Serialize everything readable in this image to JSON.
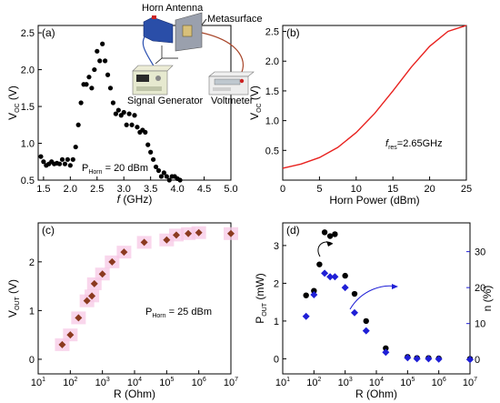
{
  "panel_a": {
    "tag": "(a)",
    "ylabel_main": "V",
    "ylabel_sub": "OC",
    "ylabel_unit": " (V)",
    "xlabel_italic": "f",
    "xlabel_rest": " (GHz)",
    "annotation_main": "P",
    "annotation_sub": "Horn",
    "annotation_rest": " = 20 dBm",
    "inset": {
      "horn_antenna": "Horn Antenna",
      "metasurface": "Metasurface",
      "signal_generator": "Signal Generator",
      "voltmeter": "Voltmeter"
    }
  },
  "panel_b": {
    "tag": "(b)",
    "ylabel_main": "V",
    "ylabel_sub": "OC",
    "ylabel_unit": " (V)",
    "xlabel": "Horn Power (dBm)",
    "annotation_italic": "f",
    "annotation_sub": "res",
    "annotation_rest": "=2.65GHz"
  },
  "panel_c": {
    "tag": "(c)",
    "ylabel_main": "V",
    "ylabel_sub": "OUT",
    "ylabel_unit": " (V)",
    "xlabel": "R (Ohm)",
    "annotation_main": "P",
    "annotation_sub": "Horn",
    "annotation_rest": " = 25 dBm"
  },
  "panel_d": {
    "tag": "(d)",
    "ylabel_main": "P",
    "ylabel_sub": "OUT",
    "ylabel_unit": " (mW)",
    "ylabel_right": "n (%)",
    "xlabel": "R (Ohm)"
  },
  "colors": {
    "black_marker": "#000000",
    "red_line": "#e8221f",
    "brown_marker": "#8b3a1f",
    "pink_shade": "#f7c8e6",
    "blue_marker": "#1f1fd6",
    "right_axis": "#1f1fd6"
  },
  "chart_data": [
    {
      "type": "scatter",
      "panel": "a",
      "xlim": [
        1.4,
        5.0
      ],
      "ylim": [
        0.5,
        2.6
      ],
      "xticks": [
        "1.5",
        "2.0",
        "2.5",
        "3.0",
        "3.5",
        "4.0",
        "4.5",
        "5.0"
      ],
      "yticks": [
        "0.5",
        "1.0",
        "1.5",
        "2.0",
        "2.5"
      ],
      "x": [
        1.45,
        1.5,
        1.55,
        1.6,
        1.65,
        1.7,
        1.75,
        1.8,
        1.85,
        1.9,
        1.95,
        2.0,
        2.05,
        2.1,
        2.15,
        2.2,
        2.25,
        2.3,
        2.35,
        2.4,
        2.45,
        2.5,
        2.55,
        2.6,
        2.65,
        2.7,
        2.75,
        2.8,
        2.85,
        2.9,
        2.95,
        3.0,
        3.05,
        3.1,
        3.15,
        3.2,
        3.25,
        3.3,
        3.35,
        3.4,
        3.45,
        3.5,
        3.55,
        3.6,
        3.65,
        3.7,
        3.75,
        3.8,
        3.85,
        3.9,
        3.95,
        4.0,
        4.05
      ],
      "y": [
        0.82,
        0.75,
        0.7,
        0.72,
        0.75,
        0.72,
        0.73,
        0.72,
        0.78,
        0.72,
        0.78,
        0.7,
        0.78,
        0.95,
        1.25,
        1.55,
        1.8,
        1.8,
        1.9,
        1.75,
        2.0,
        2.25,
        2.12,
        2.35,
        2.12,
        1.93,
        1.75,
        1.55,
        1.4,
        1.45,
        1.38,
        1.42,
        1.25,
        1.4,
        1.25,
        1.38,
        1.22,
        1.15,
        1.18,
        1.15,
        0.98,
        0.88,
        0.78,
        0.68,
        0.63,
        0.55,
        0.6,
        0.55,
        0.5,
        0.55,
        0.55,
        0.52,
        0.5
      ]
    },
    {
      "type": "line",
      "panel": "b",
      "xlim": [
        0,
        25
      ],
      "ylim": [
        0.0,
        2.6
      ],
      "xticks": [
        "0",
        "5",
        "10",
        "15",
        "20",
        "25"
      ],
      "yticks": [
        "0.5",
        "1.0",
        "1.5",
        "2.0",
        "2.5"
      ],
      "x": [
        0,
        2.5,
        5,
        7.5,
        10,
        12.5,
        15,
        17.5,
        20,
        22.5,
        25
      ],
      "y": [
        0.2,
        0.27,
        0.38,
        0.55,
        0.8,
        1.12,
        1.5,
        1.9,
        2.25,
        2.5,
        2.6
      ]
    },
    {
      "type": "scatter",
      "panel": "c",
      "xscale": "log",
      "xlim": [
        10,
        10000000
      ],
      "ylim": [
        -0.3,
        2.8
      ],
      "xticks": [
        "10",
        "100",
        "1000",
        "10000",
        "100000",
        "1000000",
        "10000000"
      ],
      "yticks": [
        "0",
        "1",
        "2"
      ],
      "x": [
        56,
        100,
        180,
        330,
        470,
        560,
        1000,
        2000,
        4700,
        20000,
        100000,
        200000,
        470000,
        1000000,
        10000000
      ],
      "y": [
        0.3,
        0.5,
        0.85,
        1.2,
        1.3,
        1.55,
        1.75,
        2.0,
        2.2,
        2.4,
        2.45,
        2.55,
        2.58,
        2.6,
        2.58
      ]
    },
    {
      "type": "scatter",
      "panel": "d",
      "xscale": "log",
      "xlim": [
        10,
        10000000
      ],
      "ylim": [
        -0.4,
        3.6
      ],
      "y2lim": [
        -4,
        38
      ],
      "xticks": [
        "10",
        "100",
        "1000",
        "10000",
        "100000",
        "1000000",
        "10000000"
      ],
      "yticks": [
        "0",
        "1",
        "2",
        "3"
      ],
      "y2ticks": [
        "0",
        "10",
        "20",
        "30"
      ],
      "series": [
        {
          "name": "P_OUT",
          "x": [
            56,
            100,
            150,
            220,
            330,
            470,
            1000,
            2000,
            4700,
            20000,
            100000,
            200000,
            470000,
            1000000,
            10000000
          ],
          "y": [
            1.68,
            1.8,
            2.5,
            3.35,
            3.25,
            3.3,
            2.2,
            1.72,
            1.0,
            0.28,
            0.05,
            0.02,
            0.02,
            0.01,
            0.0
          ]
        },
        {
          "name": "n",
          "x": [
            56,
            100,
            220,
            330,
            470,
            1000,
            2000,
            4700,
            20000,
            100000,
            200000,
            470000,
            1000000,
            10000000
          ],
          "y": [
            12,
            18,
            24,
            23,
            23,
            20,
            13,
            8,
            2,
            0.5,
            0.2,
            0.2,
            0.1,
            0.0
          ]
        }
      ]
    }
  ]
}
